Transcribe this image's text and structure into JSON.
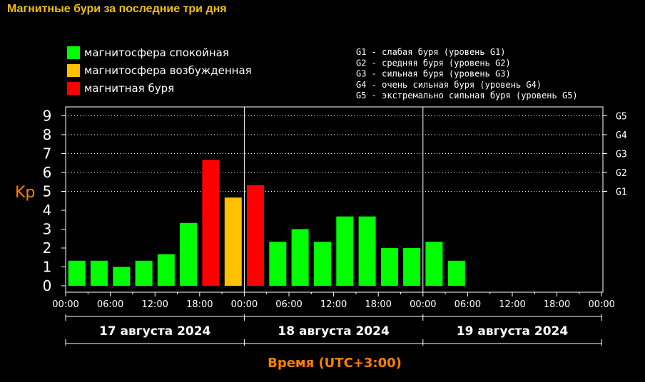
{
  "page": {
    "title": "Магнитные бури за последние три дня"
  },
  "colors": {
    "background": "#000000",
    "title": "#f0c010",
    "calm": "#00ff00",
    "excited": "#ffc000",
    "storm": "#ff0000",
    "axis_title": "#ff7f00"
  },
  "legend": [
    {
      "label": "магнитосфера спокойная",
      "color": "#00ff00"
    },
    {
      "label": "магнитосфера возбужденная",
      "color": "#ffc000"
    },
    {
      "label": "магнитная буря",
      "color": "#ff0000"
    }
  ],
  "g_scale": [
    "G1 - слабая буря (уровень G1)",
    "G2 - средняя буря (уровень G2)",
    "G3 - сильная буря (уровень G3)",
    "G4 - очень сильная буря (уровень G4)",
    "G5 - экстремально сильная буря (уровень G5)"
  ],
  "chart_data": {
    "type": "bar",
    "ylabel": "Kp",
    "xlabel": "Время (UTC+3:00)",
    "ylim": [
      0,
      9
    ],
    "y_ticks": [
      0,
      1,
      2,
      3,
      4,
      5,
      6,
      7,
      8,
      9
    ],
    "g_ticks": [
      {
        "label": "G1",
        "kp": 5
      },
      {
        "label": "G2",
        "kp": 6
      },
      {
        "label": "G3",
        "kp": 7
      },
      {
        "label": "G4",
        "kp": 8
      },
      {
        "label": "G5",
        "kp": 9
      }
    ],
    "x_tick_labels": [
      "00:00",
      "06:00",
      "12:00",
      "18:00",
      "00:00",
      "06:00",
      "12:00",
      "18:00",
      "00:00",
      "06:00",
      "12:00",
      "18:00",
      "00:00"
    ],
    "days": [
      "17 августа 2024",
      "18 августа 2024",
      "19 августа 2024"
    ],
    "slots_per_day": 8,
    "values": [
      1.33,
      1.33,
      1.0,
      1.33,
      1.67,
      3.33,
      6.67,
      4.67,
      5.33,
      2.33,
      3.0,
      2.33,
      3.67,
      3.67,
      2.0,
      2.0,
      2.33,
      1.33
    ],
    "levels": [
      "calm",
      "calm",
      "calm",
      "calm",
      "calm",
      "calm",
      "storm",
      "excited",
      "storm",
      "calm",
      "calm",
      "calm",
      "calm",
      "calm",
      "calm",
      "calm",
      "calm",
      "calm"
    ],
    "grid": "dotted horizontal lines at Kp 5-9"
  }
}
